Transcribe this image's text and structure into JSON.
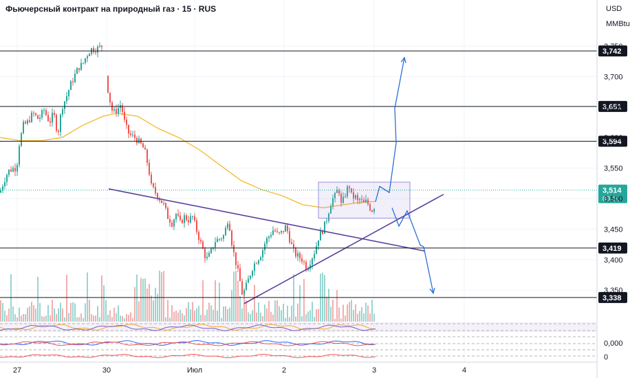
{
  "header": {
    "title": "Фьючерсный контракт на природный газ · 15 · RUS",
    "currency": "USD",
    "unit": "MMBtu"
  },
  "colors": {
    "up": "#26a69a",
    "down": "#ef5350",
    "ma": "#f5b82e",
    "trend": "#5b3f99",
    "arrow": "#2a6fd6",
    "box": "#9c8fd9",
    "current": "#26a69a",
    "tag": "#131722"
  },
  "chart_data": {
    "type": "candlestick",
    "y_range": [
      3.3,
      3.77
    ],
    "y_ticks": [
      "3,750",
      "3,700",
      "3,650",
      "3,600",
      "3,550",
      "3,500",
      "3,450",
      "3,400",
      "3,350"
    ],
    "x_ticks": [
      "27",
      "30",
      "Июл",
      "2",
      "3",
      "4"
    ],
    "levels": [
      {
        "value": 3.742,
        "label": "3,742"
      },
      {
        "value": 3.651,
        "label": "3,651"
      },
      {
        "value": 3.594,
        "label": "3,594"
      },
      {
        "value": 3.419,
        "label": "3,419"
      },
      {
        "value": 3.338,
        "label": "3,338"
      }
    ],
    "current_price": {
      "value": 3.514,
      "label": "3,514",
      "countdown": "00:11"
    },
    "close_path": [
      [
        0,
        3.51
      ],
      [
        6,
        3.53
      ],
      [
        12,
        3.545
      ],
      [
        20,
        3.55
      ],
      [
        24,
        3.55
      ],
      [
        28,
        3.59
      ],
      [
        34,
        3.62
      ],
      [
        40,
        3.625
      ],
      [
        48,
        3.64
      ],
      [
        56,
        3.63
      ],
      [
        64,
        3.645
      ],
      [
        72,
        3.625
      ],
      [
        78,
        3.64
      ],
      [
        84,
        3.605
      ],
      [
        90,
        3.65
      ],
      [
        96,
        3.665
      ],
      [
        102,
        3.685
      ],
      [
        108,
        3.7
      ],
      [
        114,
        3.715
      ],
      [
        120,
        3.72
      ],
      [
        126,
        3.735
      ],
      [
        132,
        3.745
      ],
      [
        140,
        3.745
      ],
      [
        148,
        3.75
      ],
      [
        156,
        3.685
      ],
      [
        160,
        3.66
      ],
      [
        164,
        3.64
      ],
      [
        170,
        3.645
      ],
      [
        176,
        3.655
      ],
      [
        182,
        3.62
      ],
      [
        188,
        3.605
      ],
      [
        196,
        3.6
      ],
      [
        204,
        3.59
      ],
      [
        210,
        3.58
      ],
      [
        216,
        3.55
      ],
      [
        220,
        3.52
      ],
      [
        226,
        3.51
      ],
      [
        232,
        3.5
      ],
      [
        238,
        3.49
      ],
      [
        244,
        3.47
      ],
      [
        250,
        3.46
      ],
      [
        256,
        3.475
      ],
      [
        262,
        3.46
      ],
      [
        268,
        3.47
      ],
      [
        274,
        3.465
      ],
      [
        280,
        3.47
      ],
      [
        288,
        3.44
      ],
      [
        294,
        3.42
      ],
      [
        300,
        3.4
      ],
      [
        306,
        3.41
      ],
      [
        312,
        3.43
      ],
      [
        320,
        3.435
      ],
      [
        326,
        3.44
      ],
      [
        332,
        3.47
      ],
      [
        338,
        3.42
      ],
      [
        344,
        3.39
      ],
      [
        348,
        3.37
      ],
      [
        352,
        3.345
      ],
      [
        356,
        3.35
      ],
      [
        362,
        3.37
      ],
      [
        368,
        3.39
      ],
      [
        374,
        3.4
      ],
      [
        380,
        3.41
      ],
      [
        386,
        3.43
      ],
      [
        392,
        3.44
      ],
      [
        398,
        3.45
      ],
      [
        404,
        3.44
      ],
      [
        410,
        3.445
      ],
      [
        416,
        3.455
      ],
      [
        422,
        3.43
      ],
      [
        428,
        3.41
      ],
      [
        434,
        3.405
      ],
      [
        440,
        3.4
      ],
      [
        446,
        3.385
      ],
      [
        452,
        3.4
      ],
      [
        458,
        3.415
      ],
      [
        464,
        3.44
      ],
      [
        470,
        3.45
      ],
      [
        476,
        3.47
      ],
      [
        480,
        3.49
      ],
      [
        484,
        3.5
      ],
      [
        488,
        3.505
      ],
      [
        492,
        3.52
      ],
      [
        496,
        3.49
      ],
      [
        500,
        3.5
      ],
      [
        504,
        3.515
      ],
      [
        508,
        3.52
      ],
      [
        512,
        3.5
      ],
      [
        516,
        3.505
      ],
      [
        520,
        3.495
      ],
      [
        524,
        3.5
      ],
      [
        528,
        3.49
      ],
      [
        532,
        3.495
      ],
      [
        536,
        3.49
      ],
      [
        540,
        3.48
      ],
      [
        546,
        3.49
      ]
    ],
    "moving_average": [
      [
        0,
        3.6
      ],
      [
        30,
        3.595
      ],
      [
        60,
        3.595
      ],
      [
        90,
        3.6
      ],
      [
        120,
        3.62
      ],
      [
        150,
        3.635
      ],
      [
        170,
        3.64
      ],
      [
        200,
        3.635
      ],
      [
        230,
        3.615
      ],
      [
        260,
        3.6
      ],
      [
        290,
        3.58
      ],
      [
        320,
        3.555
      ],
      [
        350,
        3.53
      ],
      [
        380,
        3.515
      ],
      [
        410,
        3.505
      ],
      [
        440,
        3.49
      ],
      [
        470,
        3.485
      ],
      [
        500,
        3.49
      ],
      [
        530,
        3.495
      ],
      [
        546,
        3.495
      ]
    ],
    "trend_lines": [
      {
        "name": "descending",
        "from": [
          158,
          3.516
        ],
        "to": [
          618,
          3.414
        ]
      },
      {
        "name": "ascending",
        "from": [
          355,
          3.328
        ],
        "to": [
          645,
          3.507
        ]
      }
    ],
    "range_box": {
      "x": [
        463,
        596
      ],
      "y": [
        3.468,
        3.527
      ]
    },
    "arrow_up": [
      [
        546,
        3.495
      ],
      [
        552,
        3.52
      ],
      [
        566,
        3.51
      ],
      [
        576,
        3.591
      ],
      [
        574,
        3.648
      ],
      [
        588,
        3.731
      ]
    ],
    "arrow_down": [
      [
        570,
        3.485
      ],
      [
        580,
        3.455
      ],
      [
        592,
        3.48
      ],
      [
        611,
        3.424
      ],
      [
        616,
        3.421
      ],
      [
        630,
        3.345
      ]
    ]
  }
}
